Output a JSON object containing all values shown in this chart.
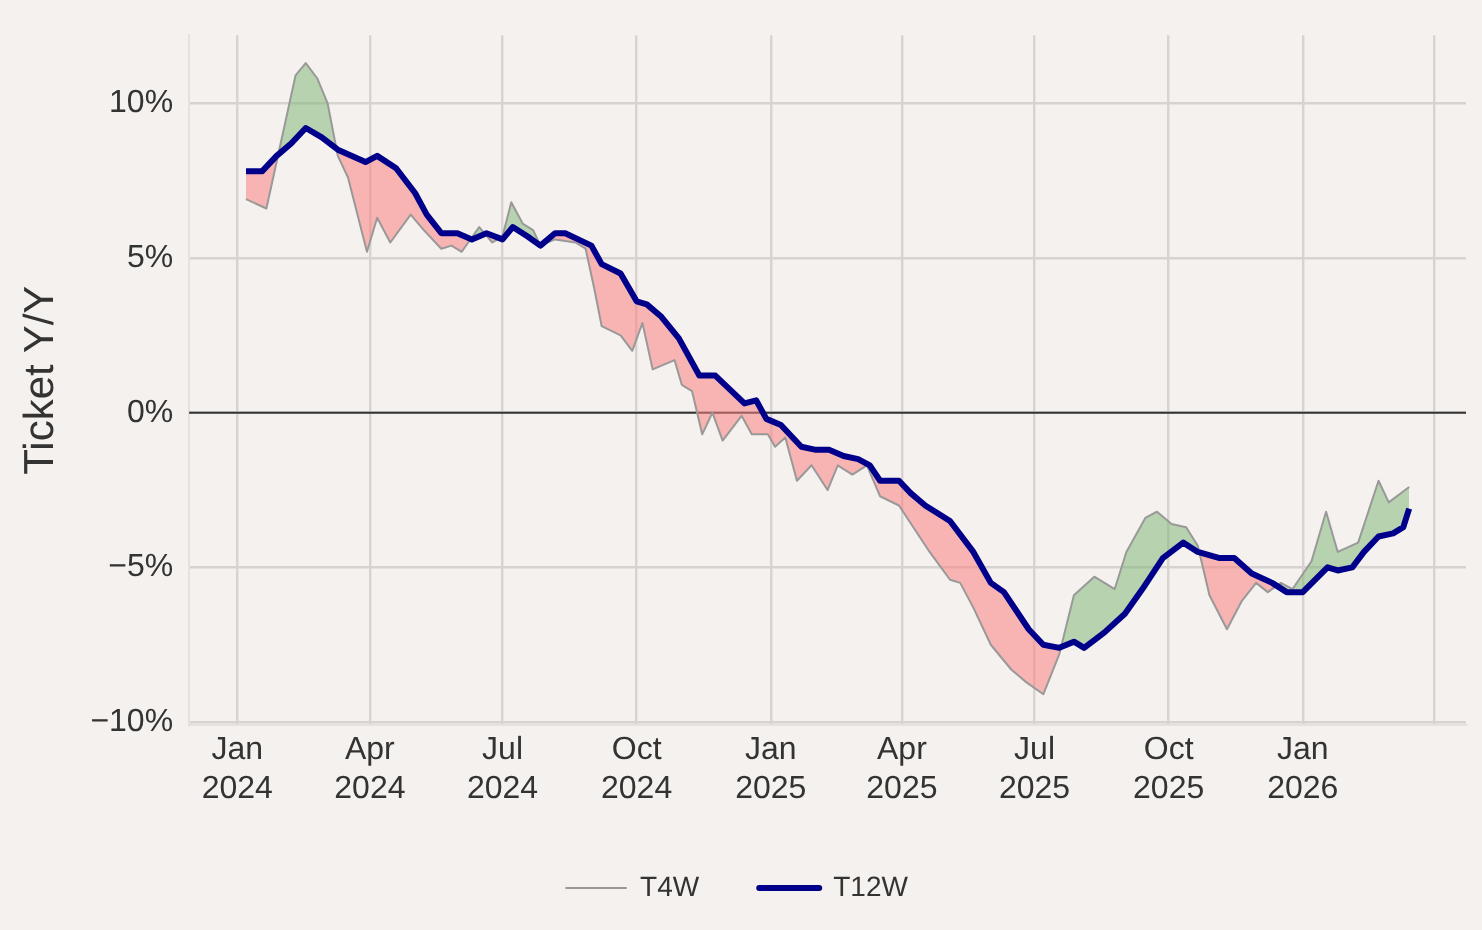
{
  "chart_data": {
    "type": "line",
    "ylabel": "Ticket Y/Y",
    "legend": "bottom",
    "grid": true,
    "marker": "none",
    "xlim": [
      "2023-11-29",
      "2026-04-23"
    ],
    "xticks": [
      {
        "value": "2024-01-01",
        "label": "Jan 2024"
      },
      {
        "value": "2024-04-01",
        "label": "Apr 2024"
      },
      {
        "value": "2024-07-01",
        "label": "Jul 2024"
      },
      {
        "value": "2024-10-01",
        "label": "Oct 2024"
      },
      {
        "value": "2025-01-01",
        "label": "Jan 2025"
      },
      {
        "value": "2025-04-01",
        "label": "Apr 2025"
      },
      {
        "value": "2025-07-01",
        "label": "Jul 2025"
      },
      {
        "value": "2025-10-01",
        "label": "Oct 2025"
      },
      {
        "value": "2026-01-01",
        "label": "Jan 2026"
      },
      {
        "value": "2026-04-01",
        "label": null
      }
    ],
    "ylim": [
      -10.1,
      12.2
    ],
    "yticks": [
      {
        "value": -10,
        "label": "−10%"
      },
      {
        "value": -5,
        "label": "−5%"
      },
      {
        "value": 0,
        "label": "0%"
      },
      {
        "value": 5,
        "label": "5%"
      },
      {
        "value": 10,
        "label": "10%"
      }
    ],
    "ref_lines": [
      {
        "axis": "y",
        "value": 0,
        "color": "#333333"
      }
    ],
    "series": [
      {
        "name": "T4W",
        "color": "#999999",
        "x": [
          "2024-01-07",
          "2024-01-21",
          "2024-02-10",
          "2024-02-17",
          "2024-02-25",
          "2024-03-03",
          "2024-03-10",
          "2024-03-17",
          "2024-03-30",
          "2024-04-06",
          "2024-04-15",
          "2024-04-29",
          "2024-05-08",
          "2024-05-20",
          "2024-05-27",
          "2024-06-03",
          "2024-06-15",
          "2024-06-24",
          "2024-07-01",
          "2024-07-07",
          "2024-07-15",
          "2024-07-22",
          "2024-07-27",
          "2024-08-06",
          "2024-08-20",
          "2024-08-27",
          "2024-09-02",
          "2024-09-07",
          "2024-09-20",
          "2024-09-28",
          "2024-10-05",
          "2024-10-12",
          "2024-10-27",
          "2024-11-01",
          "2024-11-08",
          "2024-11-15",
          "2024-11-22",
          "2024-11-29",
          "2024-12-12",
          "2024-12-19",
          "2024-12-30",
          "2025-01-04",
          "2025-01-11",
          "2025-01-19",
          "2025-01-29",
          "2025-02-09",
          "2025-02-16",
          "2025-02-26",
          "2025-03-08",
          "2025-03-17",
          "2025-03-30",
          "2025-04-06",
          "2025-04-20",
          "2025-05-04",
          "2025-05-11",
          "2025-05-20",
          "2025-06-01",
          "2025-06-15",
          "2025-06-25",
          "2025-07-07",
          "2025-07-18",
          "2025-07-28",
          "2025-08-11",
          "2025-08-25",
          "2025-09-02",
          "2025-09-15",
          "2025-09-23",
          "2025-10-03",
          "2025-10-13",
          "2025-10-21",
          "2025-10-29",
          "2025-11-10",
          "2025-11-20",
          "2025-11-30",
          "2025-12-08",
          "2025-12-17",
          "2025-12-25",
          "2026-01-07",
          "2026-01-17",
          "2026-01-25",
          "2026-02-08",
          "2026-02-22",
          "2026-03-01",
          "2026-03-15"
        ],
        "values": [
          6.9,
          6.6,
          10.9,
          11.3,
          10.8,
          10.0,
          8.3,
          7.6,
          5.2,
          6.3,
          5.5,
          6.4,
          5.9,
          5.3,
          5.4,
          5.2,
          6.0,
          5.5,
          5.7,
          6.8,
          6.1,
          5.9,
          5.4,
          5.6,
          5.5,
          5.3,
          4.0,
          2.8,
          2.5,
          2.0,
          2.9,
          1.4,
          1.7,
          0.9,
          0.7,
          -0.7,
          0.0,
          -0.9,
          -0.1,
          -0.7,
          -0.7,
          -1.1,
          -0.8,
          -2.2,
          -1.7,
          -2.5,
          -1.7,
          -2.0,
          -1.7,
          -2.7,
          -3.0,
          -3.5,
          -4.5,
          -5.4,
          -5.5,
          -6.3,
          -7.5,
          -8.3,
          -8.7,
          -9.1,
          -7.8,
          -5.9,
          -5.3,
          -5.7,
          -4.5,
          -3.4,
          -3.2,
          -3.6,
          -3.7,
          -4.3,
          -5.9,
          -7.0,
          -6.1,
          -5.5,
          -5.8,
          -5.5,
          -5.7,
          -4.8,
          -3.2,
          -4.5,
          -4.2,
          -2.2,
          -2.9,
          -2.4
        ]
      },
      {
        "name": "T12W",
        "color": "#00008b",
        "x": [
          "2024-01-07",
          "2024-01-18",
          "2024-01-28",
          "2024-02-07",
          "2024-02-17",
          "2024-02-28",
          "2024-03-10",
          "2024-03-29",
          "2024-04-06",
          "2024-04-19",
          "2024-05-02",
          "2024-05-10",
          "2024-05-20",
          "2024-05-31",
          "2024-06-10",
          "2024-06-20",
          "2024-07-01",
          "2024-07-08",
          "2024-07-18",
          "2024-07-27",
          "2024-08-06",
          "2024-08-13",
          "2024-08-31",
          "2024-09-07",
          "2024-09-20",
          "2024-10-01",
          "2024-10-08",
          "2024-10-18",
          "2024-10-30",
          "2024-11-13",
          "2024-11-24",
          "2024-12-14",
          "2024-12-22",
          "2024-12-29",
          "2025-01-08",
          "2025-01-22",
          "2025-02-01",
          "2025-02-10",
          "2025-02-20",
          "2025-03-02",
          "2025-03-10",
          "2025-03-17",
          "2025-03-30",
          "2025-04-07",
          "2025-04-17",
          "2025-05-04",
          "2025-05-20",
          "2025-06-01",
          "2025-06-10",
          "2025-06-27",
          "2025-07-07",
          "2025-07-18",
          "2025-07-28",
          "2025-08-04",
          "2025-08-18",
          "2025-09-01",
          "2025-09-13",
          "2025-09-27",
          "2025-10-11",
          "2025-10-21",
          "2025-11-05",
          "2025-11-15",
          "2025-11-27",
          "2025-12-11",
          "2025-12-21",
          "2026-01-01",
          "2026-01-18",
          "2026-01-25",
          "2026-02-04",
          "2026-02-12",
          "2026-02-22",
          "2026-03-04",
          "2026-03-11",
          "2026-03-15"
        ],
        "values": [
          7.8,
          7.8,
          8.3,
          8.7,
          9.2,
          8.9,
          8.5,
          8.1,
          8.3,
          7.9,
          7.1,
          6.4,
          5.8,
          5.8,
          5.6,
          5.8,
          5.6,
          6.0,
          5.7,
          5.4,
          5.8,
          5.8,
          5.4,
          4.8,
          4.5,
          3.6,
          3.5,
          3.1,
          2.4,
          1.2,
          1.2,
          0.3,
          0.4,
          -0.2,
          -0.4,
          -1.1,
          -1.2,
          -1.2,
          -1.4,
          -1.5,
          -1.7,
          -2.2,
          -2.2,
          -2.6,
          -3.0,
          -3.5,
          -4.5,
          -5.5,
          -5.8,
          -7.0,
          -7.5,
          -7.6,
          -7.4,
          -7.6,
          -7.1,
          -6.5,
          -5.7,
          -4.7,
          -4.2,
          -4.5,
          -4.7,
          -4.7,
          -5.2,
          -5.5,
          -5.8,
          -5.8,
          -5.0,
          -5.1,
          -5.0,
          -4.5,
          -4.0,
          -3.9,
          -3.7,
          -3.1
        ]
      }
    ]
  }
}
